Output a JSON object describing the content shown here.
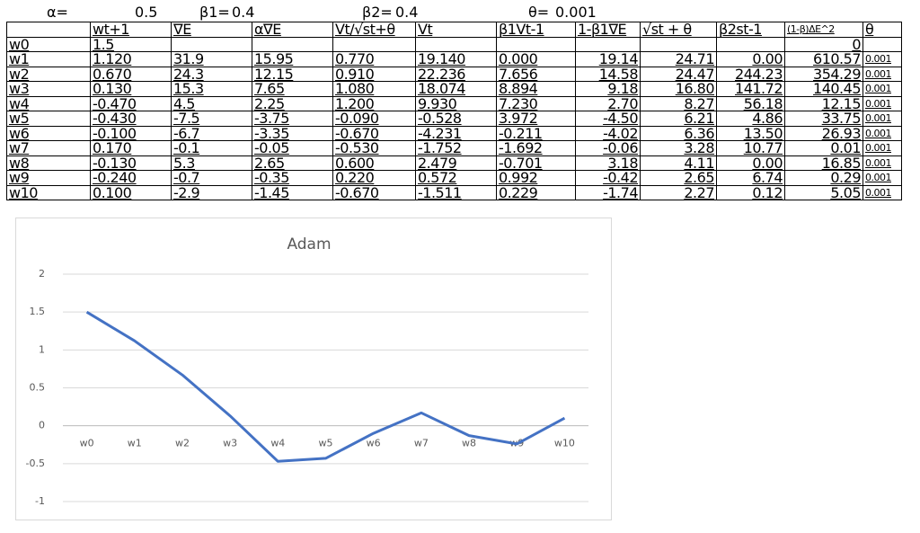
{
  "params": [
    {
      "label": "α=",
      "value": "0.5"
    },
    {
      "label": "β1=",
      "value": "0.4"
    },
    {
      "label": "β2=",
      "value": "0.4"
    },
    {
      "label": "θ=",
      "value": "0.001"
    }
  ],
  "table": {
    "columns": [
      "wt+1",
      "∇E",
      "α∇E",
      "Vt/√st+θ",
      "Vt",
      "β1Vt-1",
      "1-β1∇E",
      "√st + θ",
      "β2st-1",
      "(1-β)ΔE^2",
      "θ"
    ],
    "rows": [
      {
        "label": "w0",
        "cells": [
          "1.5",
          null,
          null,
          null,
          null,
          null,
          null,
          null,
          null,
          "0",
          null
        ]
      },
      {
        "label": "w1",
        "cells": [
          "1.120",
          "31.9",
          "15.95",
          "0.770",
          "19.140",
          "0.000",
          "19.14",
          "24.71",
          "0.00",
          "610.57",
          "0.001"
        ]
      },
      {
        "label": "w2",
        "cells": [
          "0.670",
          "24.3",
          "12.15",
          "0.910",
          "22.236",
          "7.656",
          "14.58",
          "24.47",
          "244.23",
          "354.29",
          "0.001"
        ]
      },
      {
        "label": "w3",
        "cells": [
          "0.130",
          "15.3",
          "7.65",
          "1.080",
          "18.074",
          "8.894",
          "9.18",
          "16.80",
          "141.72",
          "140.45",
          "0.001"
        ]
      },
      {
        "label": "w4",
        "cells": [
          "-0.470",
          "4.5",
          "2.25",
          "1.200",
          "9.930",
          "7.230",
          "2.70",
          "8.27",
          "56.18",
          "12.15",
          "0.001"
        ]
      },
      {
        "label": "w5",
        "cells": [
          "-0.430",
          "-7.5",
          "-3.75",
          "-0.090",
          "-0.528",
          "3.972",
          "-4.50",
          "6.21",
          "4.86",
          "33.75",
          "0.001"
        ]
      },
      {
        "label": "w6",
        "cells": [
          "-0.100",
          "-6.7",
          "-3.35",
          "-0.670",
          "-4.231",
          "-0.211",
          "-4.02",
          "6.36",
          "13.50",
          "26.93",
          "0.001"
        ]
      },
      {
        "label": "w7",
        "cells": [
          "0.170",
          "-0.1",
          "-0.05",
          "-0.530",
          "-1.752",
          "-1.692",
          "-0.06",
          "3.28",
          "10.77",
          "0.01",
          "0.001"
        ]
      },
      {
        "label": "w8",
        "cells": [
          "-0.130",
          "5.3",
          "2.65",
          "0.600",
          "2.479",
          "-0.701",
          "3.18",
          "4.11",
          "0.00",
          "16.85",
          "0.001"
        ]
      },
      {
        "label": "w9",
        "cells": [
          "-0.240",
          "-0.7",
          "-0.35",
          "0.220",
          "0.572",
          "0.992",
          "-0.42",
          "2.65",
          "6.74",
          "0.29",
          "0.001"
        ]
      },
      {
        "label": "w10",
        "cells": [
          "0.100",
          "-2.9",
          "-1.45",
          "-0.670",
          "-1.511",
          "0.229",
          "-1.74",
          "2.27",
          "0.12",
          "5.05",
          "0.001"
        ]
      }
    ]
  },
  "chart_data": {
    "type": "line",
    "title": "Adam",
    "categories": [
      "w0",
      "w1",
      "w2",
      "w3",
      "w4",
      "w5",
      "w6",
      "w7",
      "w8",
      "w9",
      "w10"
    ],
    "values": [
      1.5,
      1.12,
      0.67,
      0.13,
      -0.47,
      -0.43,
      -0.1,
      0.17,
      -0.13,
      -0.24,
      0.1
    ],
    "color": "#4472c4",
    "ylim": [
      -1,
      2
    ],
    "yticks": [
      -1,
      -0.5,
      0,
      0.5,
      1,
      1.5,
      2
    ],
    "grid": true
  }
}
